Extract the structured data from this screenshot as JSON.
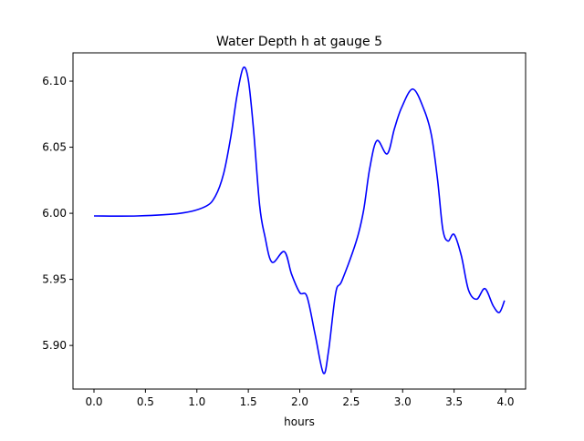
{
  "chart_data": {
    "type": "line",
    "title": "Water Depth h at gauge 5",
    "xlabel": "hours",
    "ylabel": "",
    "xlim": [
      -0.204,
      4.195
    ],
    "ylim": [
      5.867,
      6.1214
    ],
    "xticks": [
      0.0,
      0.5,
      1.0,
      1.5,
      2.0,
      2.5,
      3.0,
      3.5,
      4.0
    ],
    "xtick_labels": [
      "0.0",
      "0.5",
      "1.0",
      "1.5",
      "2.0",
      "2.5",
      "3.0",
      "3.5",
      "4.0"
    ],
    "yticks": [
      5.9,
      5.95,
      6.0,
      6.05,
      6.1
    ],
    "ytick_labels": [
      "5.90",
      "5.95",
      "6.00",
      "6.05",
      "6.10"
    ],
    "grid": false,
    "series": [
      {
        "name": "h",
        "color": "#0000ff",
        "x": [
          0,
          0.42,
          0.84,
          1.08,
          1.18,
          1.26,
          1.33,
          1.39,
          1.45,
          1.5,
          1.55,
          1.61,
          1.66,
          1.73,
          1.85,
          1.92,
          2.0,
          2.07,
          2.15,
          2.23,
          2.28,
          2.35,
          2.41,
          2.55,
          2.62,
          2.68,
          2.75,
          2.85,
          2.92,
          2.99,
          3.1,
          3.21,
          3.28,
          3.34,
          3.39,
          3.44,
          3.5,
          3.57,
          3.64,
          3.72,
          3.8,
          3.88,
          3.94,
          3.99
        ],
        "y": [
          5.998,
          5.998,
          6.0,
          6.005,
          6.013,
          6.03,
          6.058,
          6.089,
          6.11,
          6.101,
          6.064,
          6.006,
          5.983,
          5.963,
          5.971,
          5.954,
          5.94,
          5.937,
          5.908,
          5.879,
          5.896,
          5.94,
          5.949,
          5.979,
          6.002,
          6.034,
          6.055,
          6.045,
          6.064,
          6.08,
          6.094,
          6.078,
          6.059,
          6.025,
          5.988,
          5.979,
          5.984,
          5.968,
          5.942,
          5.935,
          5.943,
          5.93,
          5.925,
          5.934
        ]
      }
    ]
  }
}
